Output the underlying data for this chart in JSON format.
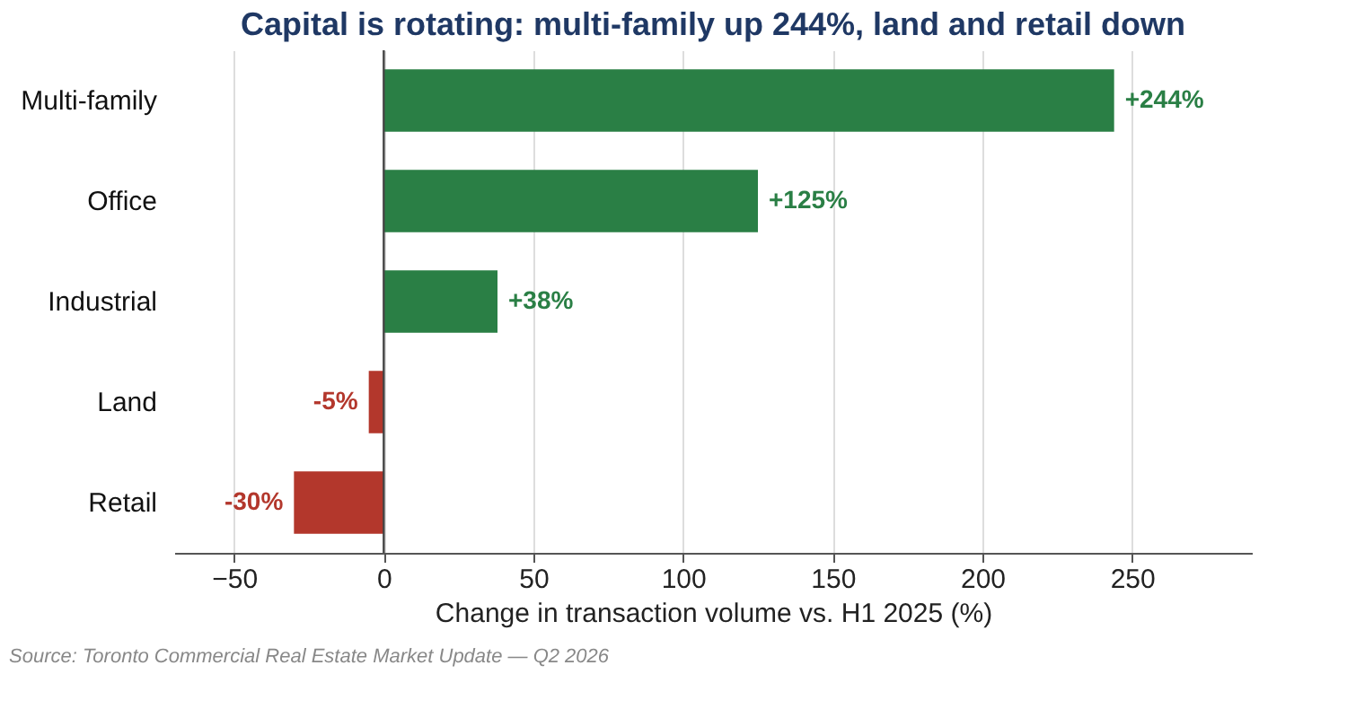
{
  "chart_data": {
    "type": "bar",
    "orientation": "horizontal",
    "title": "Capital is rotating: multi-family up 244%, land and retail down",
    "xlabel": "Change in transaction volume vs. H1 2025 (%)",
    "categories": [
      "Multi-family",
      "Office",
      "Industrial",
      "Land",
      "Retail"
    ],
    "values": [
      244,
      125,
      38,
      -5,
      -30
    ],
    "colors": [
      "#2a7f45",
      "#2a7f45",
      "#2a7f45",
      "#b3372c",
      "#b3372c"
    ],
    "value_labels": [
      "+244%",
      "+125%",
      "+38%",
      "-5%",
      "-30%"
    ],
    "xlim": [
      -70,
      290
    ],
    "xticks": [
      -50,
      0,
      50,
      100,
      150,
      200,
      250
    ],
    "grid": "x",
    "ref_lines": [
      {
        "axis": "x",
        "value": 0,
        "color": "#444444"
      }
    ],
    "annotations": [
      "Source: Toronto Commercial Real Estate Market Update — Q2 2026"
    ]
  }
}
